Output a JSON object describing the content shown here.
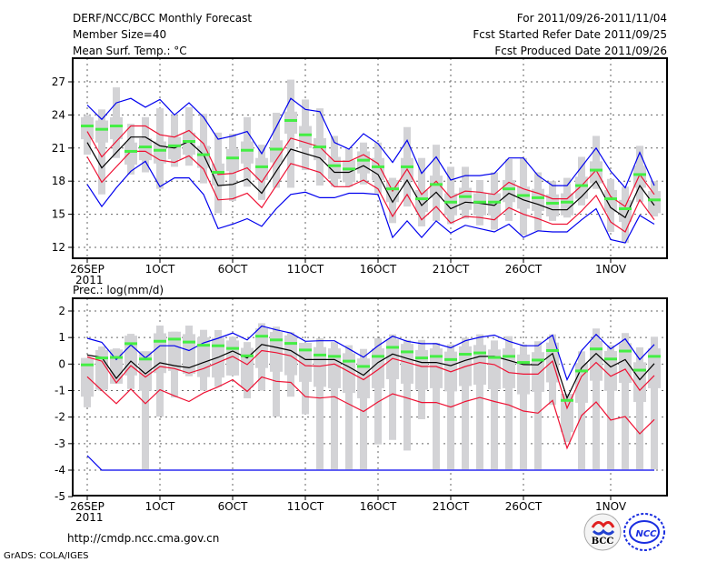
{
  "header": {
    "title": "DERF/NCC/BCC Monthly Forecast",
    "member_size": "Member Size=40",
    "variable_label": "Mean Surf. Temp.: °C",
    "period": "For 2011/09/26-2011/11/04",
    "start_date": "Fcst Started Refer Date 2011/09/25",
    "produced_date": "Fcst Produced Date 2011/09/26"
  },
  "footer": {
    "url": "http://cmdp.ncc.cma.gov.cn",
    "credit": "GrADS: COLA/IGES",
    "logo_bcc": "BCC",
    "logo_ncc": "NCC"
  },
  "colors": {
    "whisker": "#d3d3d6",
    "median": "#44ee44",
    "mean": "#000000",
    "spread": "#ee1133",
    "extreme": "#0000ee",
    "grid": "#666666"
  },
  "chart_data": [
    {
      "type": "box",
      "title": "Mean Surf. Temp.: °C",
      "ylim": [
        11,
        29
      ],
      "yticks": [
        12,
        15,
        18,
        21,
        24,
        27
      ],
      "n_days": 40,
      "xtick_labels": [
        {
          "day": 0,
          "label": "26SEP",
          "sub": "2011"
        },
        {
          "day": 5,
          "label": "1OCT"
        },
        {
          "day": 10,
          "label": "6OCT"
        },
        {
          "day": 15,
          "label": "11OCT"
        },
        {
          "day": 20,
          "label": "16OCT"
        },
        {
          "day": 25,
          "label": "21OCT"
        },
        {
          "day": 30,
          "label": "26OCT"
        },
        {
          "day": 36,
          "label": "1NOV"
        }
      ],
      "whisker_high": [
        24.0,
        24.5,
        26.5,
        23.2,
        23.8,
        24.6,
        24.0,
        24.7,
        24.1,
        22.4,
        22.3,
        23.8,
        21.3,
        24.2,
        27.2,
        25.4,
        24.6,
        22.1,
        20.9,
        21.5,
        21.5,
        18.3,
        22.9,
        20.1,
        21.3,
        19.3,
        19.3,
        18.1,
        18.8,
        20.0,
        20.1,
        18.8,
        18.0,
        18.3,
        20.2,
        22.1,
        18.2,
        17.5,
        21.2,
        18.0
      ],
      "whisker_low": [
        20.4,
        16.8,
        20.1,
        18.6,
        18.8,
        17.3,
        19.3,
        19.4,
        17.8,
        15.1,
        16.2,
        17.5,
        16.3,
        17.4,
        17.4,
        19.0,
        17.6,
        17.5,
        17.5,
        17.7,
        16.9,
        14.2,
        15.7,
        13.9,
        14.4,
        14.1,
        14.6,
        14.0,
        13.6,
        14.4,
        13.1,
        13.5,
        14.4,
        14.7,
        15.8,
        17.3,
        13.4,
        12.4,
        16.1,
        14.8
      ],
      "box_high": [
        23.8,
        23.5,
        23.8,
        21.5,
        21.9,
        21.6,
        22.0,
        22.4,
        21.2,
        19.6,
        20.9,
        21.6,
        20.1,
        21.7,
        24.3,
        23.0,
        21.9,
        20.2,
        19.9,
        20.7,
        20.1,
        18.1,
        20.1,
        17.2,
        18.5,
        16.9,
        17.4,
        16.9,
        16.9,
        18.1,
        17.5,
        17.3,
        16.8,
        16.9,
        18.4,
        19.8,
        17.2,
        16.3,
        19.4,
        17.1
      ],
      "box_low": [
        21.8,
        21.5,
        21.8,
        19.5,
        19.9,
        19.6,
        20.0,
        20.4,
        19.2,
        17.6,
        18.9,
        19.6,
        18.1,
        19.7,
        22.3,
        21.0,
        19.9,
        18.2,
        17.9,
        18.7,
        18.1,
        16.1,
        18.1,
        15.2,
        16.5,
        14.9,
        15.4,
        14.9,
        14.9,
        16.1,
        15.5,
        15.3,
        14.8,
        14.9,
        16.4,
        17.8,
        15.2,
        14.3,
        17.4,
        15.1
      ],
      "median": [
        23.0,
        22.7,
        23.0,
        20.7,
        21.1,
        20.8,
        21.2,
        21.6,
        20.4,
        18.8,
        20.1,
        20.8,
        19.3,
        20.9,
        23.5,
        22.2,
        21.1,
        19.4,
        19.1,
        19.9,
        19.3,
        17.3,
        19.3,
        16.4,
        17.7,
        16.1,
        16.6,
        16.1,
        16.1,
        17.3,
        16.7,
        16.5,
        16.0,
        16.1,
        17.6,
        19.0,
        16.4,
        15.5,
        18.6,
        16.3
      ],
      "series": [
        {
          "name": "max",
          "color_key": "extreme",
          "values": [
            24.9,
            23.6,
            25.1,
            25.5,
            24.7,
            25.4,
            24.0,
            25.1,
            23.8,
            21.8,
            22.1,
            22.5,
            20.5,
            22.9,
            25.5,
            24.5,
            24.3,
            21.5,
            20.9,
            22.3,
            21.4,
            19.7,
            21.7,
            18.7,
            20.2,
            18.1,
            18.5,
            18.5,
            18.7,
            20.1,
            20.1,
            18.5,
            17.6,
            17.6,
            19.3,
            21.0,
            18.9,
            17.4,
            20.6,
            17.6
          ]
        },
        {
          "name": "spread_high",
          "color_key": "spread",
          "values": [
            22.5,
            20.2,
            21.6,
            23.0,
            23.0,
            22.2,
            22.0,
            22.6,
            21.4,
            18.6,
            18.7,
            19.2,
            17.9,
            19.9,
            21.9,
            21.5,
            21.1,
            19.8,
            19.8,
            20.4,
            19.6,
            17.1,
            19.1,
            16.8,
            18.0,
            16.5,
            17.1,
            17.0,
            16.8,
            17.9,
            17.3,
            16.9,
            16.4,
            16.4,
            17.6,
            19.0,
            16.6,
            15.7,
            18.6,
            16.8
          ]
        },
        {
          "name": "mean",
          "color_key": "mean",
          "values": [
            21.5,
            19.2,
            20.6,
            22.0,
            22.0,
            21.2,
            21.0,
            21.6,
            20.4,
            17.6,
            17.7,
            18.2,
            16.9,
            18.9,
            20.9,
            20.5,
            20.1,
            18.8,
            18.8,
            19.4,
            18.6,
            16.1,
            18.1,
            15.8,
            17.0,
            15.5,
            16.1,
            16.0,
            15.8,
            16.9,
            16.3,
            15.9,
            15.4,
            15.4,
            16.6,
            18.0,
            15.6,
            14.7,
            17.6,
            15.8
          ]
        },
        {
          "name": "spread_low",
          "color_key": "spread",
          "values": [
            20.2,
            17.9,
            19.3,
            20.7,
            20.7,
            19.9,
            19.7,
            20.3,
            19.1,
            16.3,
            16.4,
            16.9,
            15.6,
            17.6,
            19.6,
            19.2,
            18.8,
            17.5,
            17.5,
            18.1,
            17.3,
            14.8,
            16.8,
            14.5,
            15.7,
            14.2,
            14.8,
            14.7,
            14.5,
            15.6,
            15.0,
            14.6,
            14.1,
            14.1,
            15.3,
            16.7,
            14.3,
            13.4,
            16.3,
            14.5
          ]
        },
        {
          "name": "min",
          "color_key": "extreme",
          "values": [
            17.7,
            15.7,
            17.4,
            18.9,
            19.8,
            17.5,
            18.3,
            18.3,
            16.8,
            13.7,
            14.1,
            14.6,
            13.9,
            15.5,
            16.8,
            17.0,
            16.5,
            16.5,
            16.9,
            16.9,
            16.8,
            12.9,
            14.4,
            12.9,
            14.4,
            13.3,
            14.0,
            13.7,
            13.4,
            14.1,
            12.9,
            13.5,
            13.4,
            13.4,
            14.5,
            15.5,
            12.7,
            12.4,
            14.9,
            14.1
          ]
        }
      ]
    },
    {
      "type": "box",
      "title": "Prec.: log(mm/d)",
      "ylim": [
        -5,
        2.5
      ],
      "yticks": [
        -5,
        -4,
        -3,
        -2,
        -1,
        0,
        1,
        2
      ],
      "n_days": 40,
      "xtick_labels": [
        {
          "day": 0,
          "label": "26SEP",
          "sub": "2011"
        },
        {
          "day": 5,
          "label": "1OCT"
        },
        {
          "day": 10,
          "label": "6OCT"
        },
        {
          "day": 15,
          "label": "11OCT"
        },
        {
          "day": 20,
          "label": "16OCT"
        },
        {
          "day": 25,
          "label": "21OCT"
        },
        {
          "day": 30,
          "label": "26OCT"
        },
        {
          "day": 36,
          "label": "1NOV"
        }
      ],
      "whisker_high": [
        0.23,
        0.66,
        0.59,
        1.14,
        0.48,
        1.45,
        1.22,
        1.45,
        1.29,
        1.28,
        1.03,
        0.83,
        1.54,
        1.41,
        1.2,
        0.8,
        0.97,
        0.83,
        0.71,
        0.57,
        0.97,
        1.12,
        0.91,
        0.91,
        0.8,
        0.74,
        1.0,
        1.12,
        0.89,
        1.05,
        0.74,
        0.86,
        1.12,
        -1.12,
        0.48,
        1.34,
        0.71,
        1.17,
        0.63,
        1.03
      ],
      "whisker_low": [
        -1.63,
        -1.0,
        -0.74,
        -0.94,
        -3.97,
        -1.98,
        -1.26,
        -0.46,
        -1.0,
        -0.86,
        -0.43,
        -1.29,
        -1.0,
        -1.98,
        -1.23,
        -1.89,
        -3.97,
        -3.97,
        -3.97,
        -3.97,
        -3.03,
        -2.86,
        -3.26,
        -2.08,
        -3.97,
        -3.97,
        -3.97,
        -3.97,
        -3.97,
        -3.97,
        -3.97,
        -3.97,
        -1.54,
        -2.94,
        -3.97,
        -3.97,
        -3.97,
        -3.97,
        -3.97,
        -3.97
      ],
      "box_high": [
        0.27,
        0.53,
        0.55,
        1.07,
        0.49,
        1.16,
        1.24,
        1.13,
        1.01,
        0.99,
        0.89,
        0.61,
        1.35,
        1.21,
        1.08,
        0.83,
        0.64,
        0.59,
        0.41,
        0.21,
        0.59,
        0.93,
        0.76,
        0.53,
        0.59,
        0.47,
        0.67,
        0.72,
        0.55,
        0.59,
        0.36,
        0.45,
        0.81,
        -1.07,
        0.04,
        0.87,
        0.49,
        0.79,
        0.07,
        0.59
      ],
      "box_low": [
        -1.23,
        -0.97,
        -0.95,
        -0.43,
        -1.01,
        -0.34,
        -0.26,
        -0.37,
        -0.49,
        -0.51,
        -0.61,
        -0.89,
        -0.15,
        -0.29,
        -0.42,
        -0.67,
        -0.86,
        -0.91,
        -1.09,
        -1.29,
        -0.91,
        -0.57,
        -0.74,
        -0.97,
        -0.91,
        -1.03,
        -0.83,
        -0.78,
        -0.95,
        -0.91,
        -1.14,
        -1.05,
        -0.69,
        -2.57,
        -1.46,
        -0.63,
        -1.01,
        -0.71,
        -1.43,
        -0.91
      ],
      "median": [
        -0.03,
        0.23,
        0.25,
        0.77,
        0.19,
        0.86,
        0.94,
        0.83,
        0.71,
        0.69,
        0.59,
        0.31,
        1.05,
        0.91,
        0.78,
        0.53,
        0.34,
        0.29,
        0.11,
        -0.09,
        0.29,
        0.63,
        0.46,
        0.23,
        0.29,
        0.17,
        0.37,
        0.42,
        0.25,
        0.29,
        0.06,
        0.15,
        0.51,
        -1.37,
        -0.26,
        0.57,
        0.19,
        0.49,
        -0.23,
        0.29
      ],
      "series": [
        {
          "name": "max",
          "color_key": "extreme",
          "values": [
            0.97,
            0.82,
            0.17,
            0.72,
            0.23,
            0.69,
            0.69,
            0.51,
            0.8,
            0.97,
            1.17,
            0.91,
            1.43,
            1.29,
            1.17,
            0.86,
            0.88,
            0.88,
            0.57,
            0.26,
            0.69,
            1.05,
            0.86,
            0.77,
            0.77,
            0.61,
            0.88,
            1.01,
            1.09,
            0.86,
            0.69,
            0.69,
            1.09,
            -0.59,
            0.51,
            1.12,
            0.57,
            0.95,
            0.17,
            0.74
          ]
        },
        {
          "name": "spread_high",
          "color_key": "spread",
          "values": [
            0.27,
            0.11,
            -0.71,
            -0.06,
            -0.49,
            -0.09,
            -0.17,
            -0.34,
            -0.17,
            0.06,
            0.29,
            -0.02,
            0.51,
            0.43,
            0.31,
            -0.06,
            -0.08,
            0.0,
            -0.29,
            -0.59,
            -0.21,
            0.21,
            0.06,
            -0.09,
            -0.09,
            -0.29,
            -0.09,
            0.06,
            -0.02,
            -0.32,
            -0.38,
            -0.38,
            0.11,
            -1.66,
            -0.46,
            0.06,
            -0.46,
            -0.19,
            -0.99,
            -0.43
          ]
        },
        {
          "name": "mean",
          "color_key": "mean",
          "values": [
            0.34,
            0.25,
            -0.54,
            0.11,
            -0.37,
            0.05,
            -0.06,
            -0.14,
            0.06,
            0.25,
            0.49,
            0.23,
            0.74,
            0.63,
            0.51,
            0.17,
            0.17,
            0.17,
            -0.11,
            -0.42,
            0.06,
            0.38,
            0.21,
            0.06,
            0.06,
            -0.06,
            0.14,
            0.29,
            0.29,
            0.14,
            -0.02,
            -0.03,
            0.4,
            -1.28,
            -0.14,
            0.4,
            -0.11,
            0.17,
            -0.59,
            0.02
          ]
        },
        {
          "name": "spread_low",
          "color_key": "spread",
          "values": [
            -0.48,
            -0.99,
            -1.49,
            -0.94,
            -1.49,
            -0.97,
            -1.2,
            -1.41,
            -1.09,
            -0.86,
            -0.59,
            -1.03,
            -0.49,
            -0.65,
            -0.69,
            -1.23,
            -1.28,
            -1.23,
            -1.51,
            -1.79,
            -1.43,
            -1.12,
            -1.28,
            -1.45,
            -1.45,
            -1.62,
            -1.41,
            -1.26,
            -1.41,
            -1.54,
            -1.77,
            -1.85,
            -1.37,
            -3.17,
            -1.94,
            -1.43,
            -2.11,
            -1.98,
            -2.63,
            -2.09
          ]
        },
        {
          "name": "min",
          "color_key": "extreme",
          "values": [
            -3.45,
            -4,
            -4,
            -4,
            -4,
            -4,
            -4,
            -4,
            -4,
            -4,
            -4,
            -4,
            -4,
            -4,
            -4,
            -4,
            -4,
            -4,
            -4,
            -4,
            -4,
            -4,
            -4,
            -4,
            -4,
            -4,
            -4,
            -4,
            -4,
            -4,
            -4,
            -4,
            -4,
            -4,
            -4,
            -4,
            -4,
            -4,
            -4,
            -4
          ]
        }
      ]
    }
  ]
}
